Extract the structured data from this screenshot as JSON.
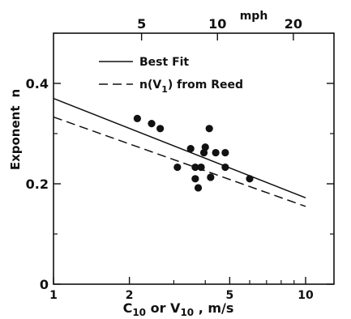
{
  "chart_data": {
    "type": "scatter",
    "x_scale": "log",
    "xlim": [
      1,
      10
    ],
    "ylim": [
      0,
      0.5
    ],
    "top_axis": {
      "label": "mph",
      "ticks": [
        {
          "value": 5,
          "label": "5"
        },
        {
          "value": 10,
          "label": "10"
        },
        {
          "value": 20,
          "label": "20"
        }
      ]
    },
    "x_ticks": [
      {
        "value": 1,
        "label": "1"
      },
      {
        "value": 2,
        "label": "2"
      },
      {
        "value": 5,
        "label": "5"
      },
      {
        "value": 10,
        "label": "10"
      }
    ],
    "x_minor_ticks": [
      3,
      4,
      6,
      7,
      8,
      9
    ],
    "y_ticks": [
      {
        "value": 0,
        "label": "0"
      },
      {
        "value": 0.2,
        "label": "0.2"
      },
      {
        "value": 0.4,
        "label": "0.4"
      }
    ],
    "y_minor_ticks": [
      0.1,
      0.3,
      0.5
    ],
    "xlabel": {
      "prefix": "C",
      "sub1": "10",
      "mid": " or V",
      "sub2": "10",
      "suffix": " ,  m/s"
    },
    "ylabel": {
      "main": "Exponent",
      "symbol": "n"
    },
    "legend": {
      "placement": "top-left",
      "entries": [
        {
          "label": "Best Fit",
          "style": "solid"
        },
        {
          "label_prefix": "n(V",
          "label_sub": "1",
          "label_suffix": ") from Reed",
          "style": "dashed"
        }
      ]
    },
    "series": [
      {
        "style": "solid",
        "points": [
          [
            1,
            0.37
          ],
          [
            10,
            0.172
          ]
        ]
      },
      {
        "style": "dashed",
        "points": [
          [
            1,
            0.333
          ],
          [
            10,
            0.155
          ]
        ]
      }
    ],
    "scatter": [
      [
        2.15,
        0.33
      ],
      [
        2.45,
        0.32
      ],
      [
        2.65,
        0.31
      ],
      [
        3.1,
        0.233
      ],
      [
        3.5,
        0.27
      ],
      [
        3.65,
        0.233
      ],
      [
        3.65,
        0.21
      ],
      [
        3.75,
        0.192
      ],
      [
        3.85,
        0.233
      ],
      [
        3.95,
        0.262
      ],
      [
        4.0,
        0.273
      ],
      [
        4.15,
        0.31
      ],
      [
        4.2,
        0.213
      ],
      [
        4.4,
        0.262
      ],
      [
        4.8,
        0.262
      ],
      [
        4.8,
        0.233
      ],
      [
        6.0,
        0.21
      ]
    ],
    "grid": false,
    "colors": {
      "ink": "#111111",
      "background": "#ffffff"
    }
  }
}
